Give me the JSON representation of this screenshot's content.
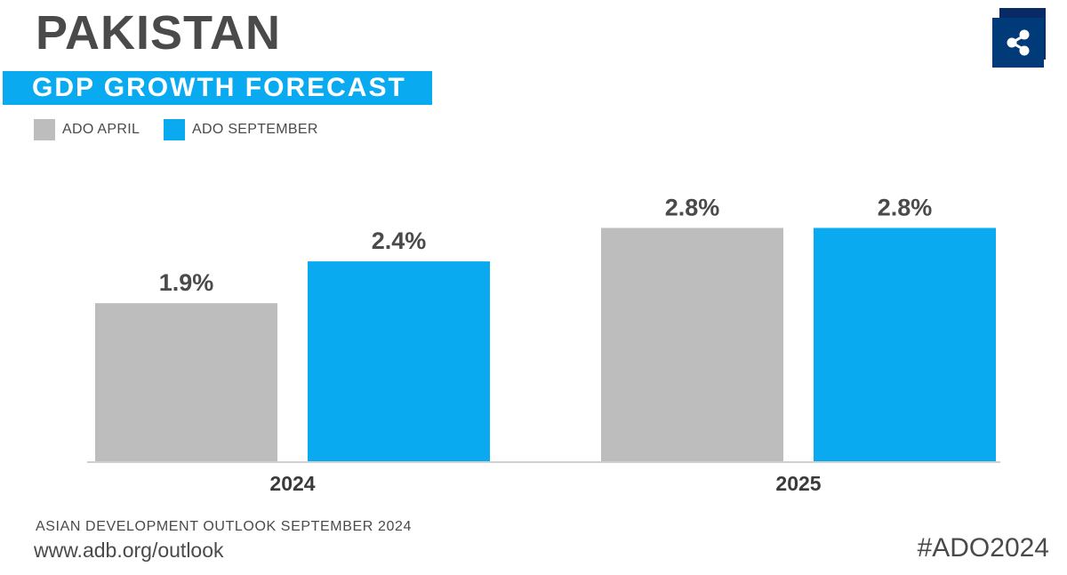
{
  "header": {
    "title": "PAKISTAN",
    "banner": "GDP GROWTH FORECAST"
  },
  "legend": [
    {
      "label": "ADO APRIL",
      "color": "#bdbdbd"
    },
    {
      "label": "ADO SEPTEMBER",
      "color": "#09aaf0"
    }
  ],
  "share": {
    "icon": "share-icon"
  },
  "chart_data": {
    "type": "bar",
    "categories": [
      "2024",
      "2025"
    ],
    "series": [
      {
        "name": "ADO APRIL",
        "color": "#bdbdbd",
        "values": [
          1.9,
          2.8
        ],
        "labels": [
          "1.9%",
          "2.8%"
        ]
      },
      {
        "name": "ADO SEPTEMBER",
        "color": "#09aaf0",
        "values": [
          2.4,
          2.8
        ],
        "labels": [
          "2.4%",
          "2.8%"
        ]
      }
    ],
    "title": "GDP GROWTH FORECAST",
    "xlabel": "",
    "ylabel": "",
    "ylim": [
      0,
      3.4
    ],
    "grid": false,
    "legend_position": "top-left"
  },
  "footer": {
    "source": "ASIAN DEVELOPMENT OUTLOOK SEPTEMBER 2024",
    "url": "www.adb.org/outlook",
    "hashtag": "#ADO2024"
  }
}
